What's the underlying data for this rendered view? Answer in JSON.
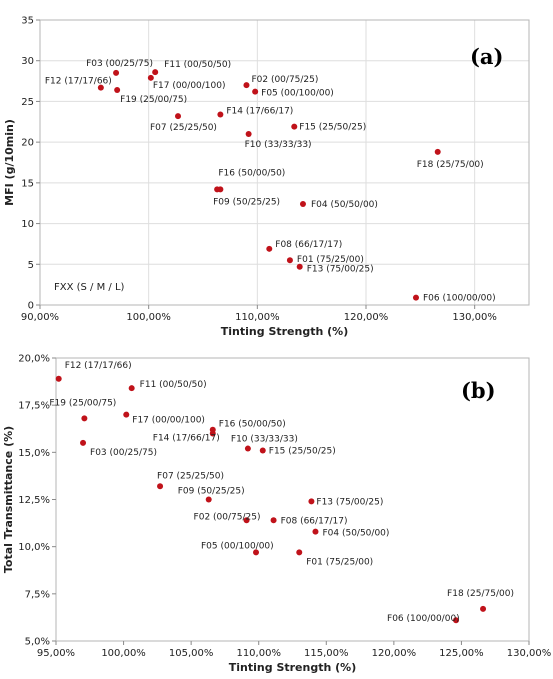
{
  "chart_data": [
    {
      "type": "scatter",
      "panel_label": "(a)",
      "xlabel": "Tinting Strength (%)",
      "ylabel": "MFI (g/10min)",
      "xlim": [
        90,
        135
      ],
      "ylim": [
        0,
        35
      ],
      "xticks": [
        90,
        100,
        110,
        120,
        130
      ],
      "xtick_labels": [
        "90,00%",
        "100,00%",
        "110,00%",
        "120,00%",
        "130,00%"
      ],
      "yticks": [
        0,
        5,
        10,
        15,
        20,
        25,
        30,
        35
      ],
      "ytick_labels": [
        "0",
        "5",
        "10",
        "15",
        "20",
        "25",
        "30",
        "35"
      ],
      "grid": true,
      "annotation": "FXX (S / M / L)",
      "marker_color": "#c0121a",
      "points": [
        {
          "label": "F01 (75/25/00)",
          "x": 113.0,
          "y": 5.5
        },
        {
          "label": "F02 (00/75/25)",
          "x": 109.0,
          "y": 27.0
        },
        {
          "label": "F03 (00/25/75)",
          "x": 97.0,
          "y": 28.5
        },
        {
          "label": "F04 (50/50/00)",
          "x": 114.2,
          "y": 12.4
        },
        {
          "label": "F05 (00/100/00)",
          "x": 109.8,
          "y": 26.2
        },
        {
          "label": "F06 (100/00/00)",
          "x": 124.6,
          "y": 0.9
        },
        {
          "label": "F07 (25/25/50)",
          "x": 102.7,
          "y": 23.2
        },
        {
          "label": "F08 (66/17/17)",
          "x": 111.1,
          "y": 6.9
        },
        {
          "label": "F09 (50/25/25)",
          "x": 106.3,
          "y": 14.2
        },
        {
          "label": "F10 (33/33/33)",
          "x": 109.2,
          "y": 21.0
        },
        {
          "label": "F11 (00/50/50)",
          "x": 100.6,
          "y": 28.6
        },
        {
          "label": "F12 (17/17/66)",
          "x": 95.6,
          "y": 26.7
        },
        {
          "label": "F13 (75/00/25)",
          "x": 113.9,
          "y": 4.7
        },
        {
          "label": "F14 (17/66/17)",
          "x": 106.6,
          "y": 23.4
        },
        {
          "label": "F15 (25/50/25)",
          "x": 113.4,
          "y": 21.9
        },
        {
          "label": "F16 (50/00/50)",
          "x": 106.6,
          "y": 14.2
        },
        {
          "label": "F17 (00/00/100)",
          "x": 100.2,
          "y": 27.9
        },
        {
          "label": "F18 (25/75/00)",
          "x": 126.6,
          "y": 18.8
        },
        {
          "label": "F19 (25/00/75)",
          "x": 97.1,
          "y": 26.4
        }
      ]
    },
    {
      "type": "scatter",
      "panel_label": "(b)",
      "xlabel": "Tinting Strength (%)",
      "ylabel": "Total Transmittance (%)",
      "xlim": [
        95,
        130
      ],
      "ylim": [
        5,
        20
      ],
      "xticks": [
        95,
        100,
        105,
        110,
        115,
        120,
        125,
        130
      ],
      "xtick_labels": [
        "95,00%",
        "100,00%",
        "105,00%",
        "110,00%",
        "115,00%",
        "120,00%",
        "125,00%",
        "130,00%"
      ],
      "yticks": [
        5,
        7.5,
        10,
        12.5,
        15,
        17.5,
        20
      ],
      "ytick_labels": [
        "5,0%",
        "7,5%",
        "10,0%",
        "12,5%",
        "15,0%",
        "17,5%",
        "20,0%"
      ],
      "grid": false,
      "marker_color": "#c0121a",
      "points": [
        {
          "label": "F01 (75/25/00)",
          "x": 113.0,
          "y": 9.7
        },
        {
          "label": "F02 (00/75/25)",
          "x": 109.1,
          "y": 11.4
        },
        {
          "label": "F03 (00/25/75)",
          "x": 97.0,
          "y": 15.5
        },
        {
          "label": "F04 (50/50/00)",
          "x": 114.2,
          "y": 10.8
        },
        {
          "label": "F05 (00/100/00)",
          "x": 109.8,
          "y": 9.7
        },
        {
          "label": "F06 (100/00/00)",
          "x": 124.6,
          "y": 6.1
        },
        {
          "label": "F07 (25/25/50)",
          "x": 102.7,
          "y": 13.2
        },
        {
          "label": "F08 (66/17/17)",
          "x": 111.1,
          "y": 11.4
        },
        {
          "label": "F09 (50/25/25)",
          "x": 106.3,
          "y": 12.5
        },
        {
          "label": "F10 (33/33/33)",
          "x": 109.2,
          "y": 15.2
        },
        {
          "label": "F11 (00/50/50)",
          "x": 100.6,
          "y": 18.4
        },
        {
          "label": "F12 (17/17/66)",
          "x": 95.2,
          "y": 18.9
        },
        {
          "label": "F13 (75/00/25)",
          "x": 113.9,
          "y": 12.4
        },
        {
          "label": "F14 (17/66/17)",
          "x": 106.6,
          "y": 16.0
        },
        {
          "label": "F15 (25/50/25)",
          "x": 110.3,
          "y": 15.1
        },
        {
          "label": "F16 (50/00/50)",
          "x": 106.6,
          "y": 16.2
        },
        {
          "label": "F17 (00/00/100)",
          "x": 100.2,
          "y": 17.0
        },
        {
          "label": "F18 (25/75/00)",
          "x": 126.6,
          "y": 6.7
        },
        {
          "label": "F19 (25/00/75)",
          "x": 97.1,
          "y": 16.8
        }
      ]
    }
  ]
}
